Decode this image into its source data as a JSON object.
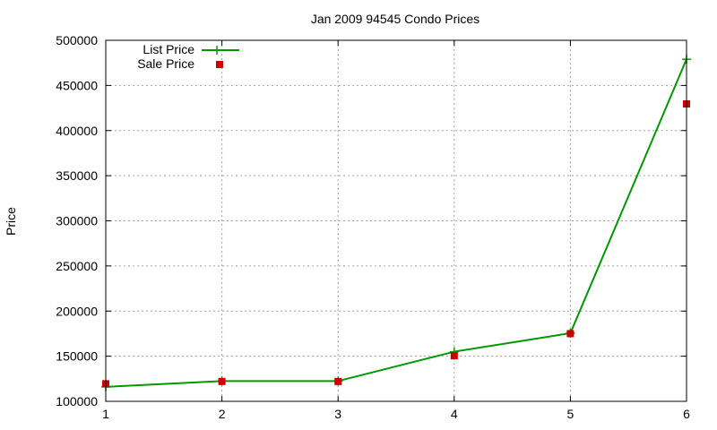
{
  "chart_data": {
    "type": "line",
    "title": "Jan 2009 94545 Condo Prices",
    "xlabel": "",
    "ylabel": "Price",
    "x": [
      1,
      2,
      3,
      4,
      5,
      6
    ],
    "xlim": [
      1,
      6
    ],
    "ylim": [
      100000,
      500000
    ],
    "xticks": [
      "1",
      "2",
      "3",
      "4",
      "5",
      "6"
    ],
    "yticks": [
      "100000",
      "150000",
      "200000",
      "250000",
      "300000",
      "350000",
      "400000",
      "450000",
      "500000"
    ],
    "grid": true,
    "legend_position": "top-left",
    "series": [
      {
        "name": "List Price",
        "style": "line-with-plus-markers",
        "color": "#009900",
        "values": [
          116000,
          122500,
          122500,
          155000,
          175500,
          479000
        ]
      },
      {
        "name": "Sale Price",
        "style": "square-markers",
        "color": "#cc0000",
        "values": [
          119500,
          122000,
          122000,
          150500,
          175000,
          429500
        ]
      }
    ]
  }
}
